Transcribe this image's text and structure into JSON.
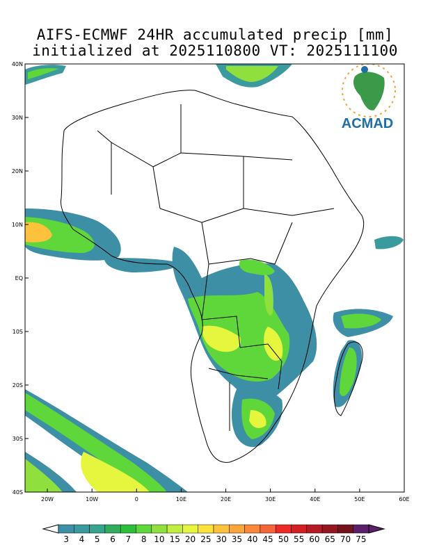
{
  "title_line1": "AIFS-ECMWF 24HR accumulated precip [mm]",
  "title_line2": "initialized at 2025110800 VT: 2025111100",
  "logo": {
    "text": "ACMAD",
    "icon": "africa-logo-icon"
  },
  "axes": {
    "lat_labels": [
      "40N",
      "30N",
      "20N",
      "10N",
      "EQ",
      "10S",
      "20S",
      "30S",
      "40S"
    ],
    "lon_labels": [
      "20W",
      "10W",
      "0",
      "10E",
      "20E",
      "30E",
      "40E",
      "50E",
      "60E"
    ]
  },
  "colorbar": {
    "labels": [
      "3",
      "4",
      "5",
      "6",
      "7",
      "8",
      "10",
      "15",
      "20",
      "25",
      "30",
      "35",
      "40",
      "45",
      "50",
      "55",
      "60",
      "65",
      "70",
      "75"
    ],
    "colors": [
      "#3d8fa6",
      "#3a9a9e",
      "#37a48f",
      "#2fae5e",
      "#2bbf3a",
      "#5fd63a",
      "#8fe03d",
      "#c2ee3f",
      "#e6f53e",
      "#fde23c",
      "#fcc23b",
      "#fba63b",
      "#f8883a",
      "#f4663a",
      "#ee2a27",
      "#d41f24",
      "#b61a22",
      "#961620",
      "#74131d",
      "#5b1f6c"
    ]
  },
  "colors": {
    "land": "#ffffff",
    "border": "#000000"
  }
}
